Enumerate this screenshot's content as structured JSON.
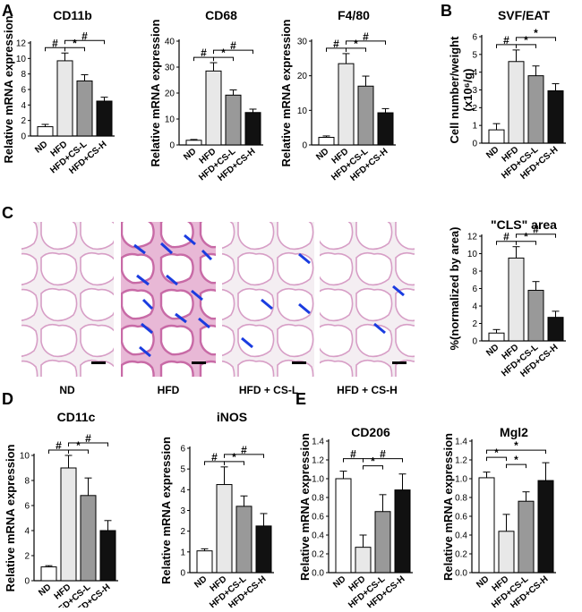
{
  "panel_labels": [
    "A",
    "B",
    "C",
    "D",
    "E"
  ],
  "micrograph_labels": [
    "ND",
    "HFD",
    "HFD + CS-L",
    "HFD + CS-H"
  ],
  "chart_data": [
    {
      "id": "cd11b",
      "panel": "A",
      "type": "bar",
      "title": "CD11b",
      "ylabel": "Relative mRNA expression",
      "ylim": [
        0,
        12
      ],
      "yticks": [
        0,
        2,
        4,
        6,
        8,
        10,
        12
      ],
      "tick_labels": [
        "0",
        "2",
        "4",
        "6",
        "8",
        "10",
        "12"
      ],
      "categories": [
        "ND",
        "HFD",
        "HFD+CS-L",
        "HFD+CS-H"
      ],
      "values": [
        1.2,
        9.7,
        7.1,
        4.5
      ],
      "errors": [
        0.3,
        1.0,
        0.8,
        0.5
      ],
      "colors": [
        "#ffffff",
        "#e8e8e8",
        "#999999",
        "#111111"
      ],
      "sig": [
        {
          "from": 0,
          "to": 1,
          "label": "#",
          "level": 0
        },
        {
          "from": 1,
          "to": 3,
          "label": "#",
          "level": 1
        },
        {
          "from": 1,
          "to": 2,
          "label": "*",
          "level": 0
        }
      ]
    },
    {
      "id": "cd68",
      "panel": "A",
      "type": "bar",
      "title": "CD68",
      "ylabel": "Relative mRNA expression",
      "ylim": [
        0,
        40
      ],
      "yticks": [
        0,
        10,
        20,
        30,
        40
      ],
      "tick_labels": [
        "0",
        "10",
        "20",
        "30",
        "40"
      ],
      "categories": [
        "ND",
        "HFD",
        "HFD+CS-L",
        "HFD+CS-H"
      ],
      "values": [
        1.8,
        28.5,
        19.2,
        12.5
      ],
      "errors": [
        0.3,
        3.2,
        2.0,
        1.3
      ],
      "colors": [
        "#ffffff",
        "#e8e8e8",
        "#999999",
        "#111111"
      ],
      "sig": [
        {
          "from": 0,
          "to": 1,
          "label": "#",
          "level": 0
        },
        {
          "from": 1,
          "to": 3,
          "label": "#",
          "level": 1
        },
        {
          "from": 1,
          "to": 2,
          "label": "*",
          "level": 0
        }
      ]
    },
    {
      "id": "f480",
      "panel": "A",
      "type": "bar",
      "title": "F4/80",
      "ylabel": "Relative mRNA expression",
      "ylim": [
        0,
        30
      ],
      "yticks": [
        0,
        10,
        20,
        30
      ],
      "tick_labels": [
        "0",
        "10",
        "20",
        "30"
      ],
      "categories": [
        "ND",
        "HFD",
        "HFD+CS-L",
        "HFD+CS-H"
      ],
      "values": [
        2.2,
        23.5,
        17.0,
        9.3
      ],
      "errors": [
        0.4,
        2.9,
        2.9,
        1.2
      ],
      "colors": [
        "#ffffff",
        "#e8e8e8",
        "#999999",
        "#111111"
      ],
      "sig": [
        {
          "from": 0,
          "to": 1,
          "label": "#",
          "level": 0
        },
        {
          "from": 1,
          "to": 3,
          "label": "#",
          "level": 1
        },
        {
          "from": 1,
          "to": 2,
          "label": "*",
          "level": 0
        }
      ]
    },
    {
      "id": "svf",
      "panel": "B",
      "type": "bar",
      "title": "SVF/EAT",
      "ylabel": "Cell number/weight",
      "ylabel2": "(x10⁶/g)",
      "ylim": [
        0,
        6
      ],
      "yticks": [
        0,
        1,
        2,
        3,
        4,
        5,
        6
      ],
      "tick_labels": [
        "0",
        "1",
        "2",
        "3",
        "4",
        "5",
        "6"
      ],
      "categories": [
        "ND",
        "HFD",
        "HFD+CS-L",
        "HFD+CS-H"
      ],
      "values": [
        0.75,
        4.6,
        3.8,
        2.95
      ],
      "errors": [
        0.35,
        0.65,
        0.55,
        0.4
      ],
      "colors": [
        "#ffffff",
        "#e8e8e8",
        "#999999",
        "#111111"
      ],
      "sig": [
        {
          "from": 0,
          "to": 1,
          "label": "#",
          "level": 0
        },
        {
          "from": 1,
          "to": 3,
          "label": "*",
          "level": 1
        },
        {
          "from": 1,
          "to": 2,
          "label": "*",
          "level": 0
        }
      ]
    },
    {
      "id": "cls",
      "panel": "C",
      "type": "bar",
      "title": "\"CLS\" area",
      "ylabel": "%(normalized by area)",
      "ylim": [
        0,
        12
      ],
      "yticks": [
        0,
        2,
        4,
        6,
        8,
        10,
        12
      ],
      "tick_labels": [
        "0",
        "2",
        "4",
        "6",
        "8",
        "10",
        "12"
      ],
      "categories": [
        "ND",
        "HFD",
        "HFD+CS-L",
        "HFD+CS-H"
      ],
      "values": [
        0.9,
        9.5,
        5.8,
        2.7
      ],
      "errors": [
        0.4,
        1.3,
        1.0,
        0.7
      ],
      "colors": [
        "#ffffff",
        "#e8e8e8",
        "#999999",
        "#111111"
      ],
      "sig": [
        {
          "from": 0,
          "to": 1,
          "label": "#",
          "level": 0
        },
        {
          "from": 1,
          "to": 3,
          "label": "#",
          "level": 1
        },
        {
          "from": 1,
          "to": 2,
          "label": "*",
          "level": 0
        }
      ]
    },
    {
      "id": "cd11c",
      "panel": "D",
      "type": "bar",
      "title": "CD11c",
      "ylabel": "Relative mRNA expression",
      "ylim": [
        0,
        10
      ],
      "yticks": [
        0,
        2,
        4,
        6,
        8,
        10
      ],
      "tick_labels": [
        "0",
        "2",
        "4",
        "6",
        "8",
        "10"
      ],
      "categories": [
        "ND",
        "HFD",
        "HFD+CS-L",
        "HFD+CS-H"
      ],
      "values": [
        1.1,
        9.0,
        6.8,
        4.0
      ],
      "errors": [
        0.1,
        1.0,
        1.4,
        0.8
      ],
      "colors": [
        "#ffffff",
        "#e8e8e8",
        "#999999",
        "#111111"
      ],
      "sig": [
        {
          "from": 0,
          "to": 1,
          "label": "#",
          "level": 0
        },
        {
          "from": 1,
          "to": 3,
          "label": "#",
          "level": 1
        },
        {
          "from": 1,
          "to": 2,
          "label": "*",
          "level": 0
        }
      ]
    },
    {
      "id": "inos",
      "panel": "D",
      "type": "bar",
      "title": "iNOS",
      "ylabel": "Relative mRNA expression",
      "ylim": [
        0,
        6
      ],
      "yticks": [
        0,
        1,
        2,
        3,
        4,
        5,
        6
      ],
      "tick_labels": [
        "0",
        "1",
        "2",
        "3",
        "4",
        "5",
        "6"
      ],
      "categories": [
        "ND",
        "HFD",
        "HFD+CS-L",
        "HFD+CS-H"
      ],
      "values": [
        1.05,
        4.25,
        3.2,
        2.25
      ],
      "errors": [
        0.1,
        0.85,
        0.5,
        0.6
      ],
      "colors": [
        "#ffffff",
        "#e8e8e8",
        "#999999",
        "#111111"
      ],
      "sig": [
        {
          "from": 0,
          "to": 1,
          "label": "#",
          "level": 0
        },
        {
          "from": 1,
          "to": 3,
          "label": "#",
          "level": 1
        },
        {
          "from": 1,
          "to": 2,
          "label": "*",
          "level": 0
        }
      ]
    },
    {
      "id": "cd206",
      "panel": "E",
      "type": "bar",
      "title": "CD206",
      "ylabel": "Relative mRNA expression",
      "ylim": [
        0,
        1.4
      ],
      "yticks": [
        0,
        0.2,
        0.4,
        0.6,
        0.8,
        1.0,
        1.2,
        1.4
      ],
      "tick_labels": [
        "0.0",
        "0.2",
        "0.4",
        "0.6",
        "0.8",
        "1.0",
        "1.2",
        "1.4"
      ],
      "categories": [
        "ND",
        "HFD",
        "HFD+CS-L",
        "HFD+CS-H"
      ],
      "values": [
        1.0,
        0.27,
        0.65,
        0.88
      ],
      "errors": [
        0.08,
        0.13,
        0.18,
        0.17
      ],
      "colors": [
        "#ffffff",
        "#e8e8e8",
        "#999999",
        "#111111"
      ],
      "sig": [
        {
          "from": 0,
          "to": 1,
          "label": "#",
          "level": 1
        },
        {
          "from": 1,
          "to": 3,
          "label": "#",
          "level": 1
        },
        {
          "from": 1,
          "to": 2,
          "label": "*",
          "level": 0
        }
      ]
    },
    {
      "id": "mgl2",
      "panel": "E",
      "type": "bar",
      "title": "Mgl2",
      "ylabel": "Relative mRNA expression",
      "ylim": [
        0,
        1.4
      ],
      "yticks": [
        0,
        0.2,
        0.4,
        0.6,
        0.8,
        1.0,
        1.2,
        1.4
      ],
      "tick_labels": [
        "0.0",
        "0.2",
        "0.4",
        "0.6",
        "0.8",
        "1.0",
        "1.2",
        "1.4"
      ],
      "categories": [
        "ND",
        "HFD",
        "HFD+CS-L",
        "HFD+CS-H"
      ],
      "values": [
        1.01,
        0.44,
        0.76,
        0.98
      ],
      "errors": [
        0.06,
        0.18,
        0.1,
        0.19
      ],
      "colors": [
        "#ffffff",
        "#e8e8e8",
        "#999999",
        "#111111"
      ],
      "sig": [
        {
          "from": 0,
          "to": 1,
          "label": "*",
          "level": 0
        },
        {
          "from": 0,
          "to": 3,
          "label": "*",
          "level": 1
        },
        {
          "from": 1,
          "to": 2,
          "label": "*",
          "level": -1
        }
      ]
    }
  ]
}
